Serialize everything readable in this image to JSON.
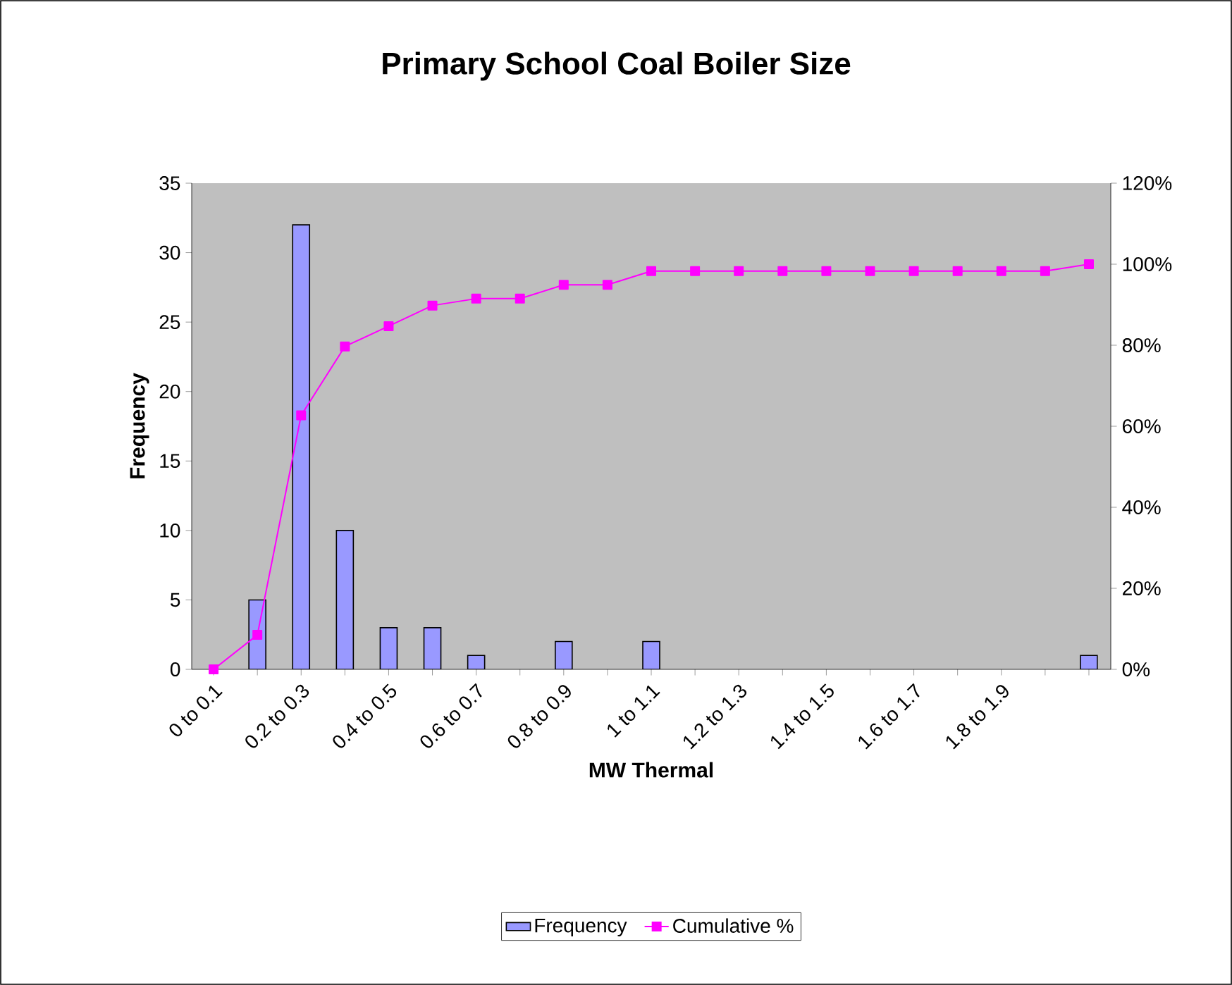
{
  "chart_data": {
    "type": "bar",
    "title": "Primary School Coal Boiler Size",
    "xlabel": "MW Thermal",
    "ylabel": "Frequency",
    "categories": [
      "0 to 0.1",
      null,
      "0.2 to 0.3",
      null,
      "0.4 to 0.5",
      null,
      "0.6 to 0.7",
      null,
      "0.8 to 0.9",
      null,
      "1 to 1.1",
      null,
      "1.2 to 1.3",
      null,
      "1.4 to 1.5",
      null,
      "1.6 to 1.7",
      null,
      "1.8 to 1.9",
      null,
      null
    ],
    "series": [
      {
        "name": "Frequency",
        "color": "#9999ff",
        "values": [
          0,
          5,
          32,
          10,
          3,
          3,
          1,
          0,
          2,
          0,
          2,
          0,
          0,
          0,
          0,
          0,
          0,
          0,
          0,
          0,
          1
        ]
      },
      {
        "name": "Cumulative %",
        "type": "line",
        "axis": "y2",
        "color": "#ff00ff",
        "values": [
          0,
          8.5,
          62.7,
          79.7,
          84.7,
          89.8,
          91.5,
          91.5,
          94.9,
          94.9,
          98.3,
          98.3,
          98.3,
          98.3,
          98.3,
          98.3,
          98.3,
          98.3,
          98.3,
          98.3,
          100
        ]
      }
    ],
    "ylim": [
      0,
      35
    ],
    "yticks": [
      0,
      5,
      10,
      15,
      20,
      25,
      30,
      35
    ],
    "y2lim": [
      0,
      120
    ],
    "y2ticks": [
      {
        "value": 0,
        "label": "0%"
      },
      {
        "value": 20,
        "label": "20%"
      },
      {
        "value": 40,
        "label": "40%"
      },
      {
        "value": 60,
        "label": "60%"
      },
      {
        "value": 80,
        "label": "80%"
      },
      {
        "value": 100,
        "label": "100%"
      },
      {
        "value": 120,
        "label": "120%"
      }
    ],
    "marker": "square",
    "legend": "bottom"
  }
}
